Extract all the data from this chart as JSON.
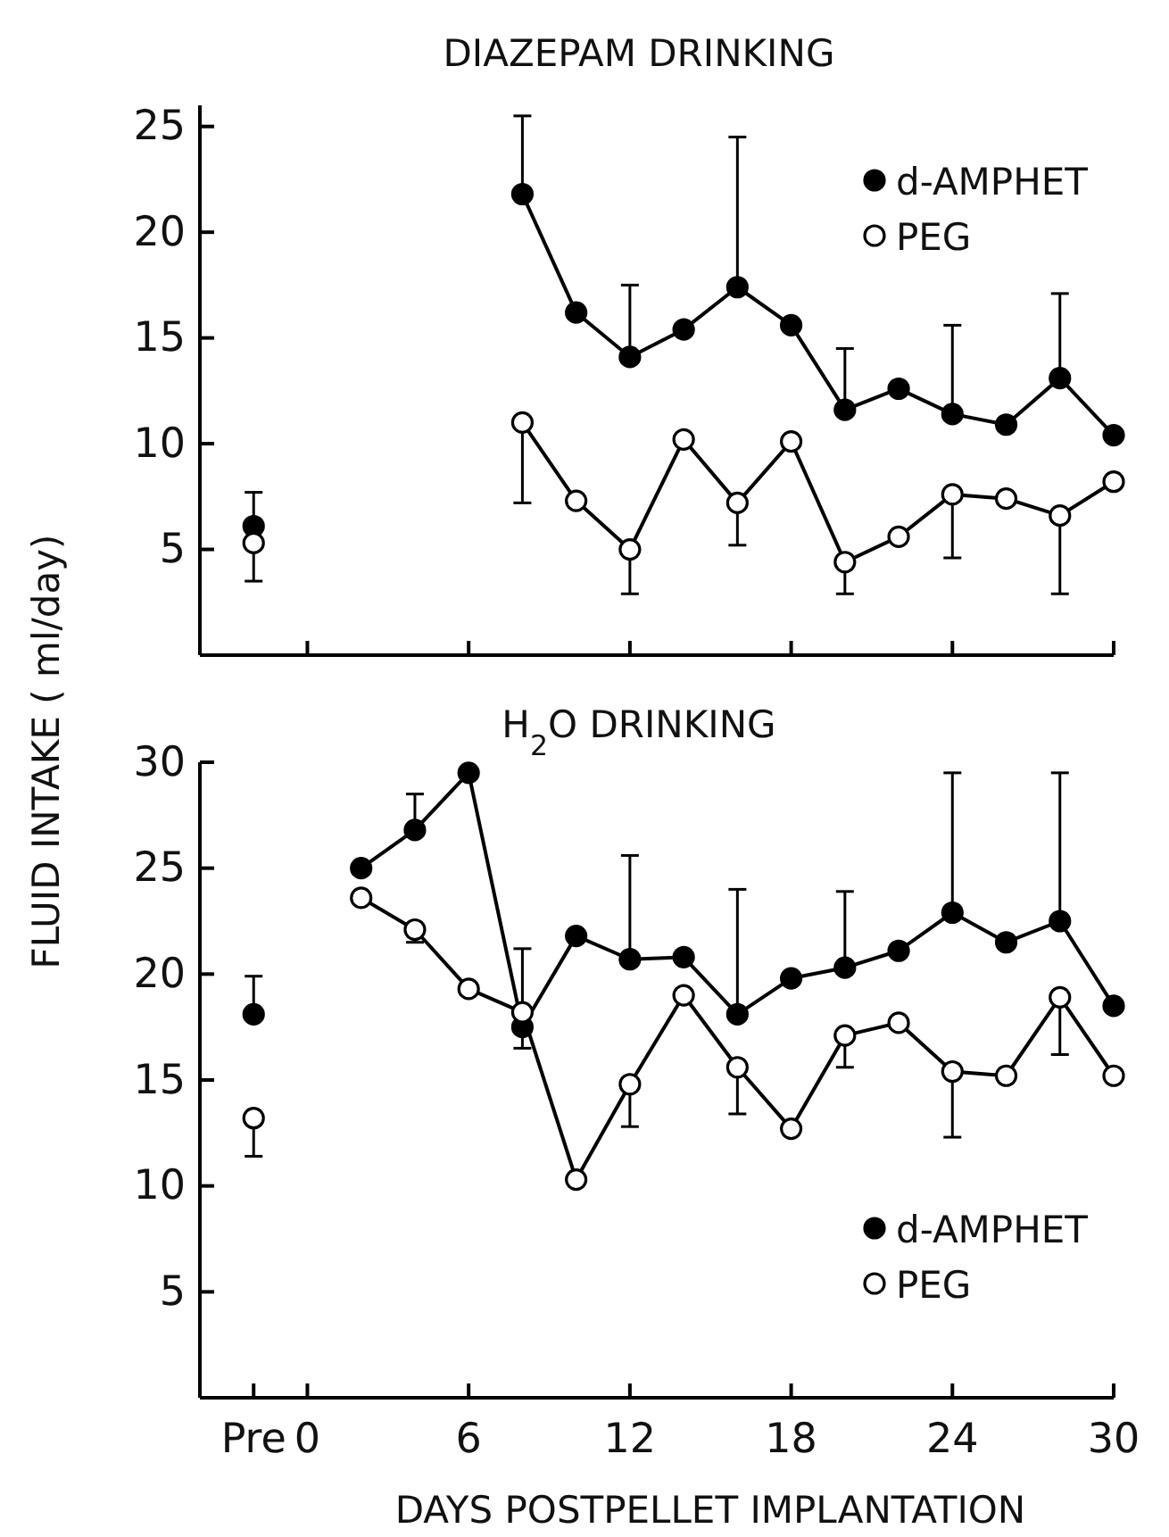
{
  "chart_data": [
    {
      "type": "line",
      "title": "DIAZEPAM DRINKING",
      "ylabel": "FLUID INTAKE ( ml/day)",
      "x": [
        -2,
        0,
        8,
        10,
        12,
        14,
        16,
        18,
        20,
        22,
        24,
        26,
        28,
        30
      ],
      "xlim": [
        -4,
        30
      ],
      "xticks": [
        0,
        6,
        12,
        18,
        24,
        30
      ],
      "ylim": [
        0,
        26
      ],
      "yticks": [
        5,
        10,
        15,
        20,
        25
      ],
      "tick_labels": "y",
      "marker": "circle",
      "legend": "top right",
      "series": [
        {
          "name": "d-AMPHET",
          "color": "#000000",
          "values": [
            6.1,
            null,
            21.8,
            16.2,
            14.1,
            15.4,
            17.4,
            15.6,
            11.6,
            12.6,
            11.4,
            10.9,
            13.1,
            10.4
          ],
          "errors": [
            [
              6.1,
              7.7
            ],
            null,
            [
              21.8,
              25.5
            ],
            null,
            [
              14.1,
              17.5
            ],
            null,
            [
              17.4,
              24.5
            ],
            null,
            [
              11.6,
              14.5
            ],
            null,
            [
              11.4,
              15.6
            ],
            null,
            [
              13.1,
              17.1
            ],
            null
          ]
        },
        {
          "name": "PEG",
          "color": "#ffffff",
          "values": [
            5.3,
            null,
            11.0,
            7.3,
            5.0,
            10.2,
            7.2,
            10.1,
            4.4,
            5.6,
            7.6,
            7.4,
            6.6,
            8.2
          ],
          "errors": [
            [
              3.5,
              5.3
            ],
            null,
            [
              7.2,
              11.0
            ],
            null,
            [
              2.9,
              5.0
            ],
            null,
            [
              5.2,
              7.2
            ],
            null,
            [
              2.9,
              4.4
            ],
            null,
            [
              4.6,
              7.6
            ],
            null,
            [
              2.9,
              6.6
            ],
            null
          ]
        }
      ]
    },
    {
      "type": "line",
      "title": "H$_{2}$O DRINKING",
      "xlabel": "DAYS POSTPELLET IMPLANTATION",
      "x": [
        -2,
        0,
        2,
        4,
        6,
        8,
        10,
        12,
        14,
        16,
        18,
        20,
        22,
        24,
        26,
        28,
        30
      ],
      "xlim": [
        -4,
        30
      ],
      "xticks": [
        {
          "value": -2,
          "label": "Pre"
        },
        0,
        6,
        12,
        18,
        24,
        30
      ],
      "ylim": [
        0,
        30
      ],
      "yticks": [
        5,
        10,
        15,
        20,
        25,
        30
      ],
      "marker": "circle",
      "legend": "bottom right",
      "series": [
        {
          "name": "d-AMPHET",
          "color": "#000000",
          "values": [
            18.1,
            null,
            25.0,
            26.8,
            29.5,
            17.5,
            21.8,
            20.7,
            20.8,
            18.1,
            19.8,
            20.3,
            21.1,
            22.9,
            21.5,
            22.5,
            18.5
          ],
          "errors": [
            [
              18.1,
              19.9
            ],
            null,
            null,
            [
              26.8,
              28.5
            ],
            null,
            [
              17.5,
              21.2
            ],
            null,
            [
              20.7,
              25.6
            ],
            null,
            [
              18.1,
              24.0
            ],
            null,
            [
              20.3,
              23.9
            ],
            null,
            [
              22.9,
              29.5
            ],
            null,
            [
              22.5,
              29.5
            ],
            null
          ]
        },
        {
          "name": "PEG",
          "color": "#ffffff",
          "values": [
            13.2,
            null,
            23.6,
            22.1,
            19.3,
            18.2,
            10.3,
            14.8,
            19.0,
            15.6,
            12.7,
            17.1,
            17.7,
            15.4,
            15.2,
            18.9,
            15.2
          ],
          "errors": [
            [
              11.4,
              13.2
            ],
            null,
            null,
            [
              21.5,
              22.1
            ],
            null,
            [
              16.5,
              18.2
            ],
            null,
            [
              12.8,
              14.8
            ],
            null,
            [
              13.4,
              15.6
            ],
            null,
            [
              15.6,
              17.1
            ],
            null,
            [
              12.3,
              15.4
            ],
            null,
            [
              16.2,
              18.9
            ],
            null
          ]
        }
      ]
    }
  ]
}
